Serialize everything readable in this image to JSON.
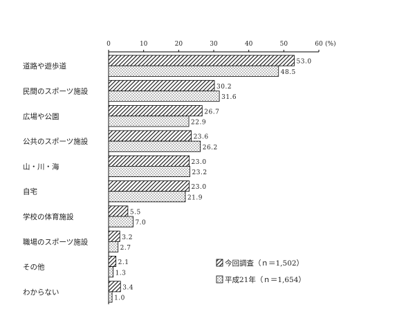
{
  "chart_data": {
    "type": "bar",
    "orientation": "horizontal",
    "unit": "(%)",
    "xlim": [
      0,
      60
    ],
    "ticks": [
      "0",
      "10",
      "20",
      "30",
      "40",
      "50",
      "60"
    ],
    "categories": [
      "道路や遊歩道",
      "民間のスポーツ施設",
      "広場や公園",
      "公共のスポーツ施設",
      "山・川・海",
      "自宅",
      "学校の体育施設",
      "職場のスポーツ施設",
      "その他",
      "わからない"
    ],
    "series": [
      {
        "name": "今回調査（ｎ＝1,502）",
        "pattern": "diagonal-hatch",
        "values": [
          53.0,
          30.2,
          26.7,
          23.6,
          23.0,
          23.0,
          5.5,
          3.2,
          2.1,
          3.4
        ],
        "labels": [
          "53.0",
          "30.2",
          "26.7",
          "23.6",
          "23.0",
          "23.0",
          "5.5",
          "3.2",
          "2.1",
          "3.4"
        ]
      },
      {
        "name": "平成21年（ｎ＝1,654）",
        "pattern": "dots",
        "values": [
          48.5,
          31.6,
          22.9,
          26.2,
          23.2,
          21.9,
          7.0,
          2.7,
          1.3,
          1.0
        ],
        "labels": [
          "48.5",
          "31.6",
          "22.9",
          "26.2",
          "23.2",
          "21.9",
          "7.0",
          "2.7",
          "1.3",
          "1.0"
        ]
      }
    ],
    "legend_position": "bottom-right",
    "grid": false
  }
}
